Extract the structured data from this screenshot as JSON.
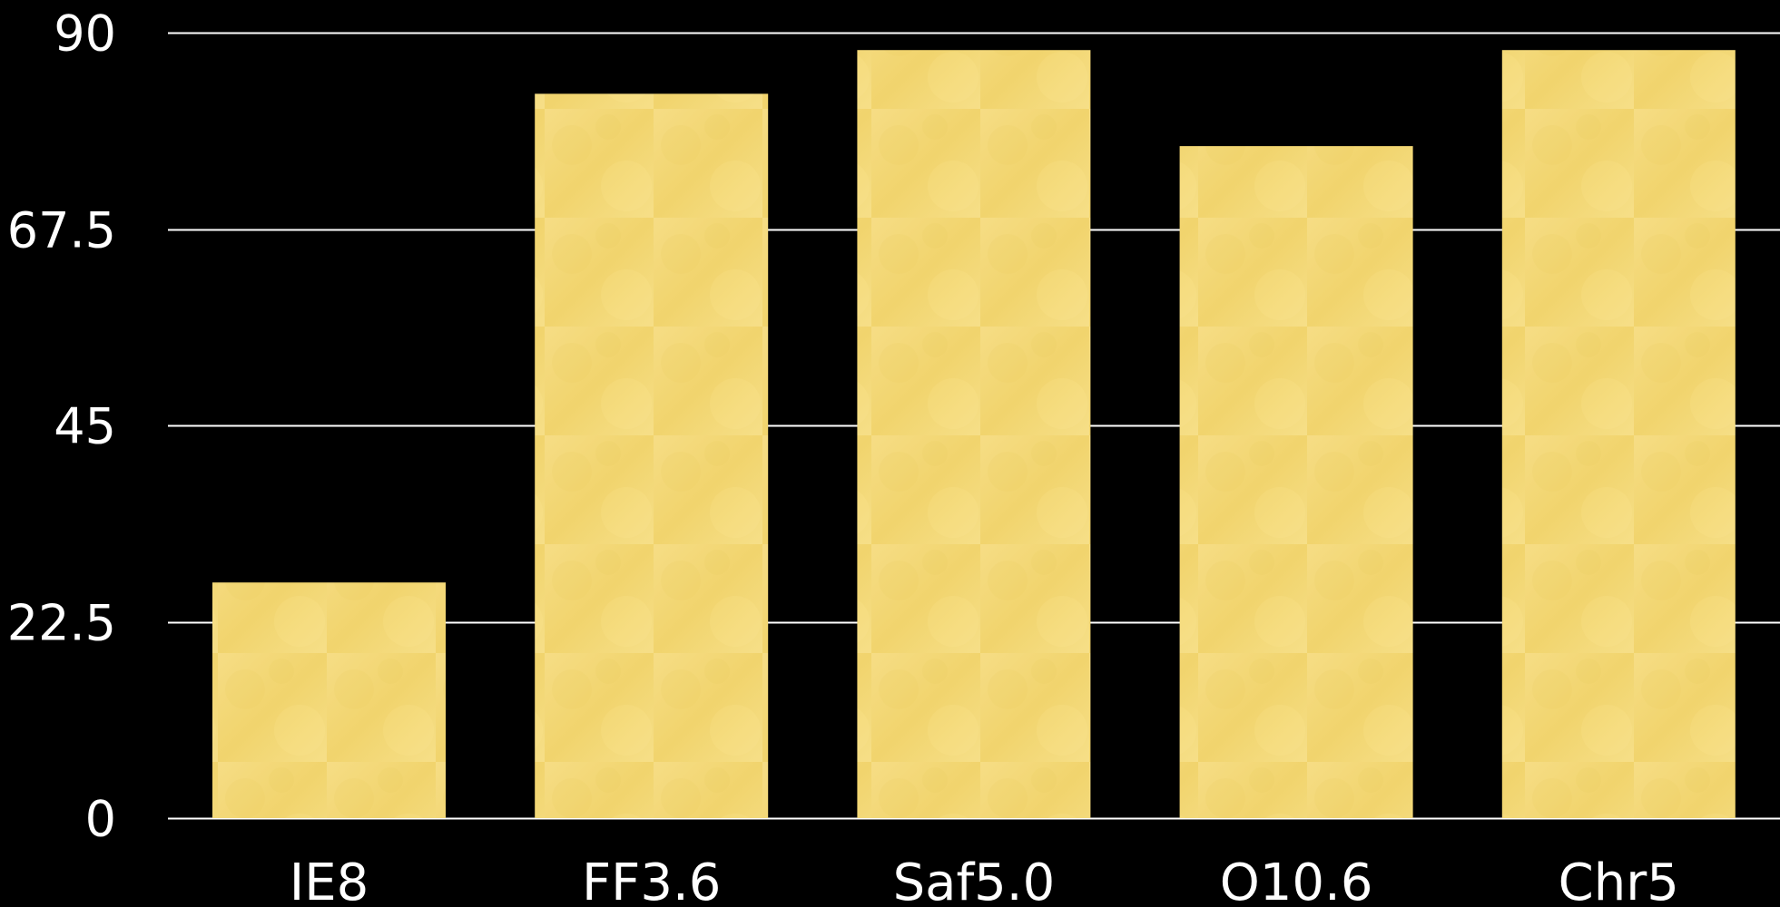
{
  "chart_data": {
    "type": "bar",
    "categories": [
      "IE8",
      "FF3.6",
      "Saf5.0",
      "O10.6",
      "Chr5"
    ],
    "series": [
      {
        "values": [
          27,
          83,
          88,
          77,
          88
        ]
      }
    ],
    "ylim": [
      0,
      90
    ],
    "yticks": [
      0,
      22.5,
      45,
      67.5,
      90
    ],
    "ytick_labels": [
      "0",
      "22.5",
      "45",
      "67.5",
      "90"
    ],
    "grid": true,
    "legend": "none",
    "colors": {
      "background": "#000000",
      "bar": "#f4d97a",
      "bar_shade": "#eccf5f",
      "grid": "#ffffff",
      "text": "#ffffff"
    }
  }
}
